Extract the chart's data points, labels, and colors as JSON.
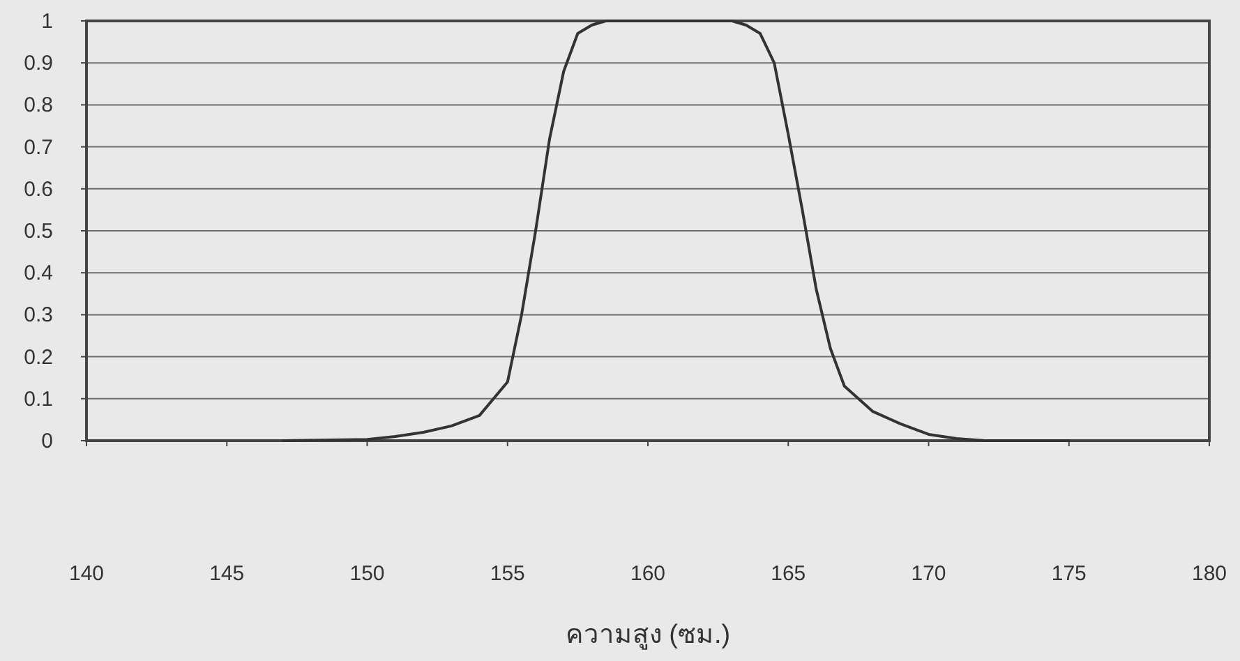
{
  "chart_data": {
    "type": "line",
    "xlabel": "ความสูง (ซม.)",
    "x": [
      147,
      150,
      151,
      152,
      153,
      154,
      155,
      155.5,
      156,
      156.5,
      157,
      157.5,
      158,
      158.5,
      159.5,
      161,
      163,
      163.5,
      164,
      164.5,
      165,
      165.5,
      166,
      166.5,
      167,
      168,
      169,
      170,
      171,
      172,
      175
    ],
    "series": [
      {
        "color": "#333333",
        "values": [
          0,
          0.003,
          0.01,
          0.02,
          0.035,
          0.06,
          0.14,
          0.3,
          0.5,
          0.72,
          0.88,
          0.97,
          0.99,
          1,
          1,
          1,
          1,
          0.99,
          0.97,
          0.9,
          0.73,
          0.55,
          0.36,
          0.22,
          0.13,
          0.07,
          0.04,
          0.015,
          0.005,
          0,
          0
        ]
      }
    ],
    "xlim": [
      140,
      180
    ],
    "ylim": [
      0,
      1
    ],
    "xticks": [
      140,
      145,
      150,
      155,
      160,
      165,
      170,
      175,
      180
    ],
    "yticks": [
      0,
      0.1,
      0.2,
      0.3,
      0.4,
      0.5,
      0.6,
      0.7,
      0.8,
      0.9,
      1
    ],
    "grid": "y"
  }
}
